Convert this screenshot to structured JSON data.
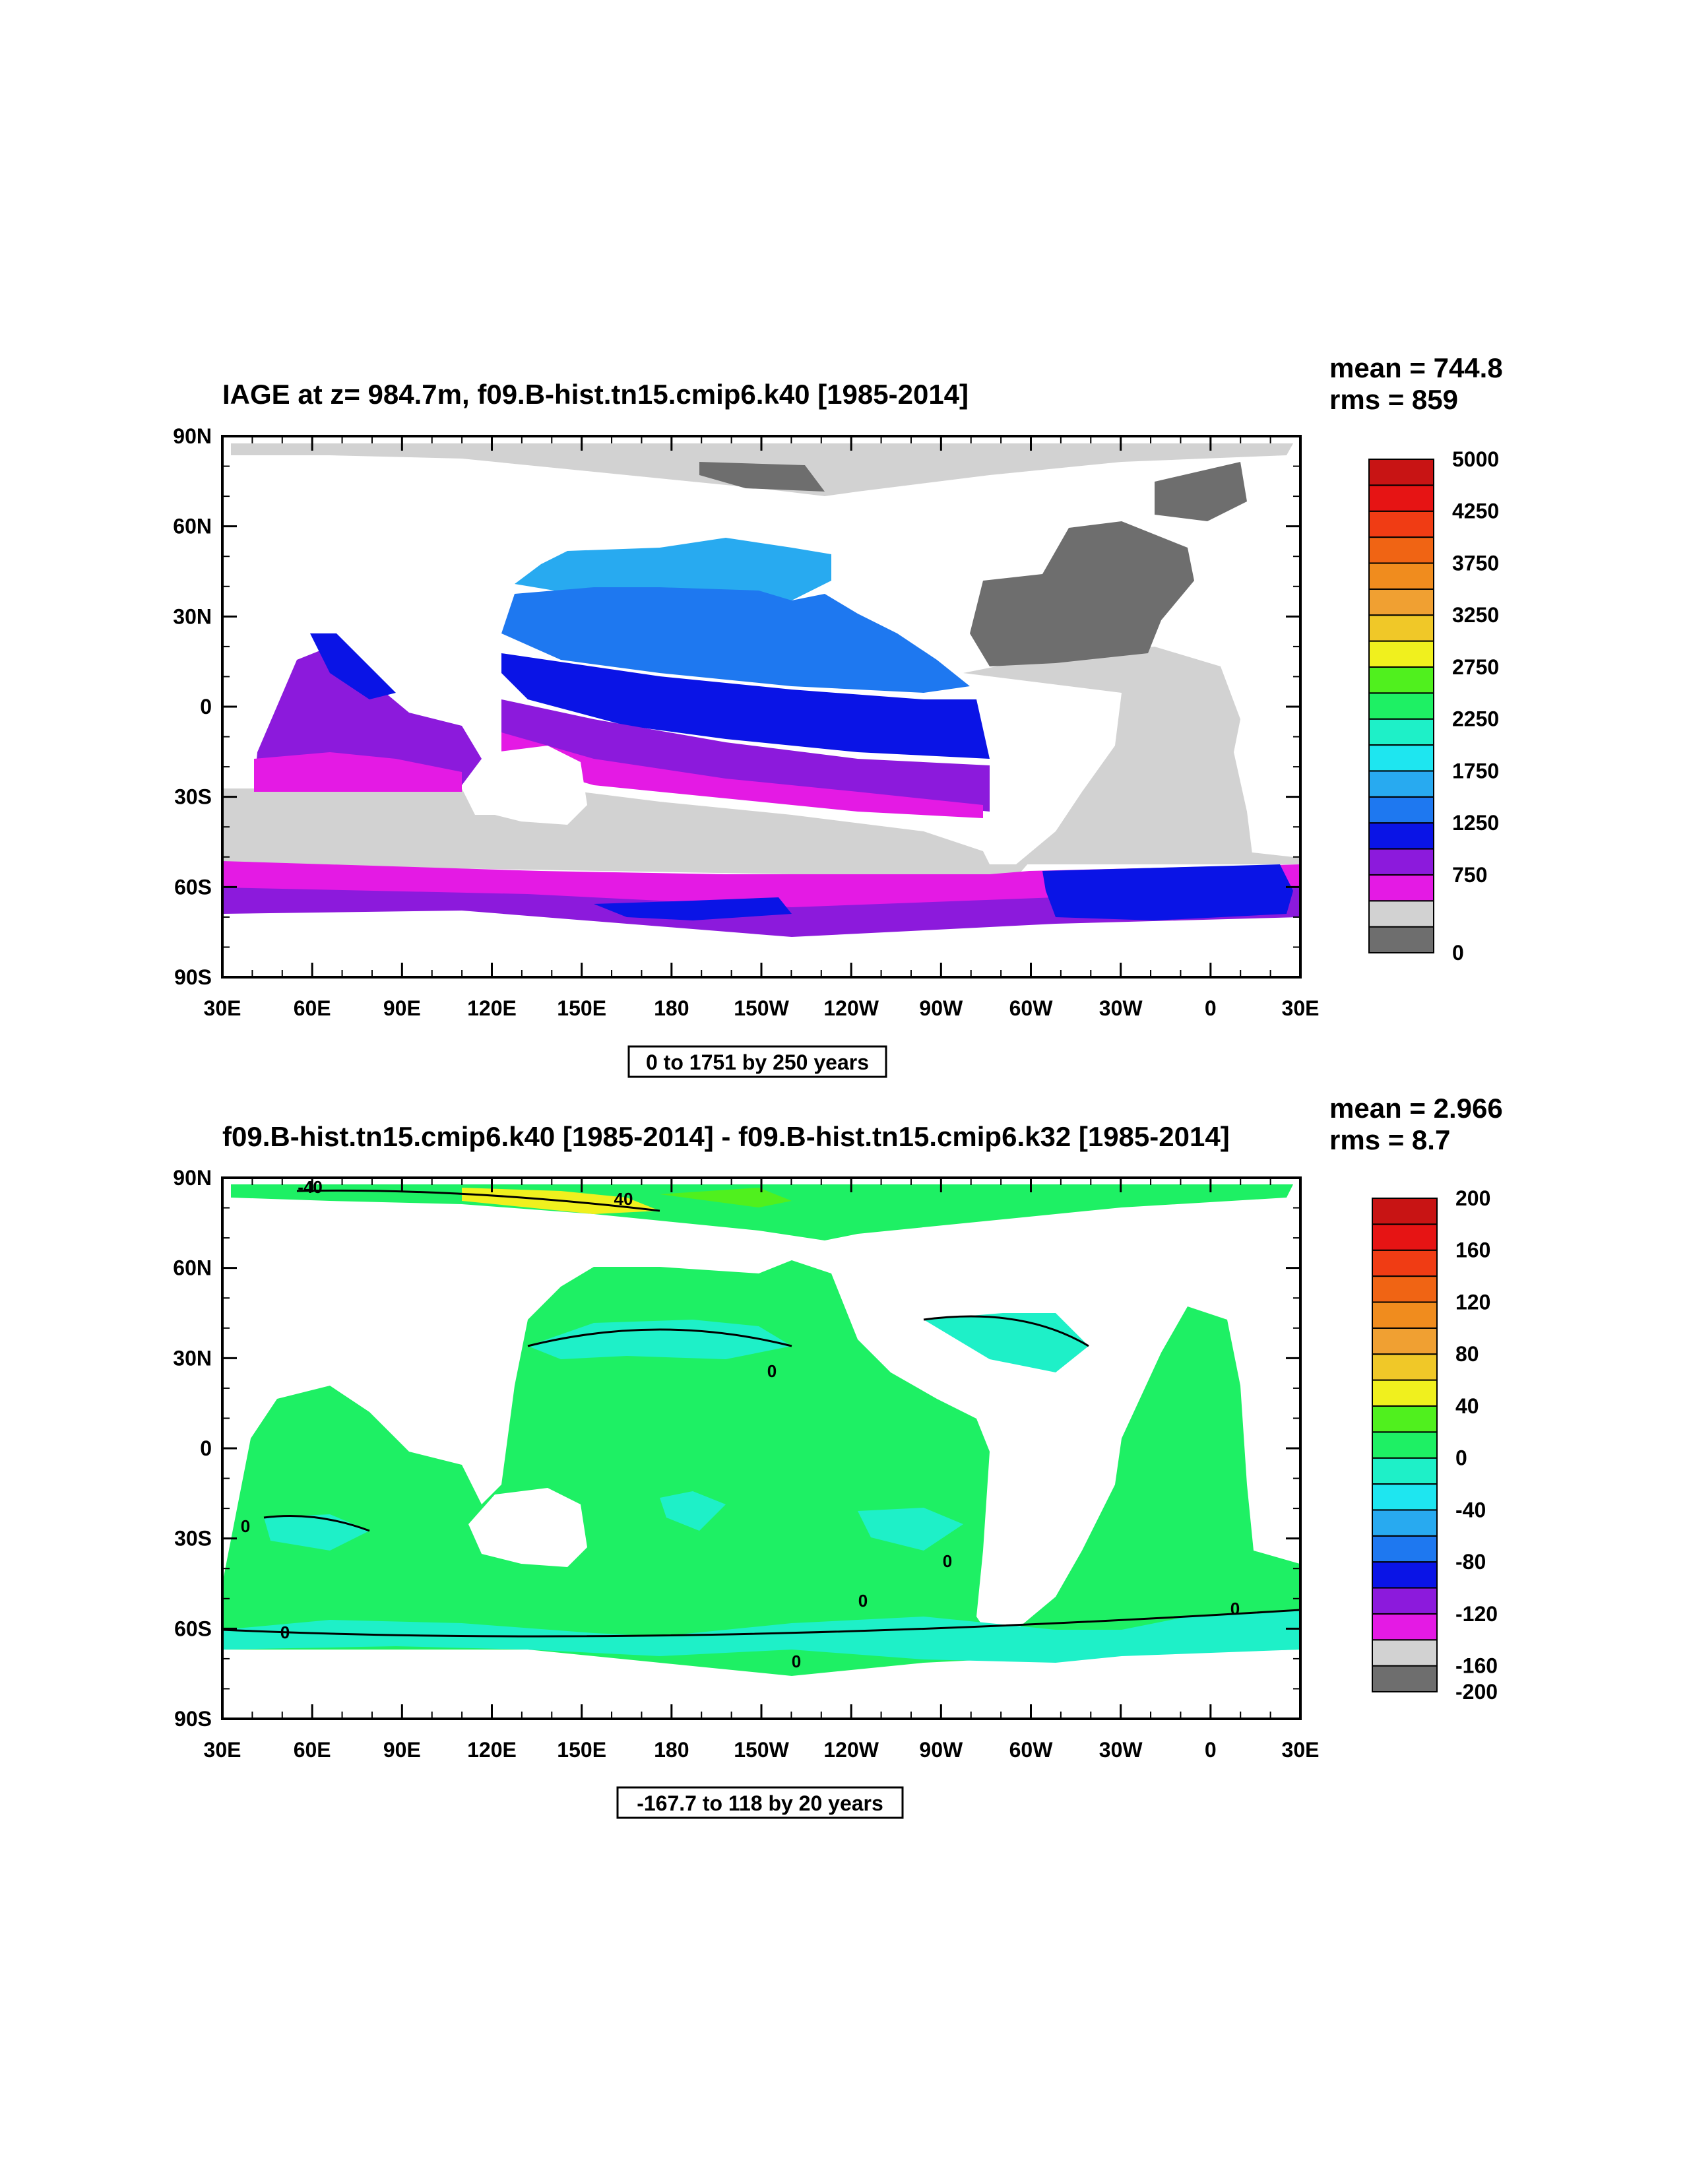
{
  "chart_data": [
    {
      "type": "heatmap",
      "title": "IAGE at z= 984.7m, f09.B-hist.tn15.cmip6.k40 [1985-2014]",
      "stats": {
        "mean": "mean = 744.8",
        "rms": "rms = 859"
      },
      "contour_info": "0 to 1751 by 250 years",
      "xlim": [
        30,
        390
      ],
      "ylim": [
        -90,
        90
      ],
      "x_ticks": [
        {
          "value": 30,
          "label": "30E"
        },
        {
          "value": 60,
          "label": "60E"
        },
        {
          "value": 90,
          "label": "90E"
        },
        {
          "value": 120,
          "label": "120E"
        },
        {
          "value": 150,
          "label": "150E"
        },
        {
          "value": 180,
          "label": "180"
        },
        {
          "value": 210,
          "label": "150W"
        },
        {
          "value": 240,
          "label": "120W"
        },
        {
          "value": 270,
          "label": "90W"
        },
        {
          "value": 300,
          "label": "60W"
        },
        {
          "value": 330,
          "label": "30W"
        },
        {
          "value": 360,
          "label": "0"
        },
        {
          "value": 390,
          "label": "30E"
        }
      ],
      "y_ticks": [
        {
          "value": 90,
          "label": "90N"
        },
        {
          "value": 60,
          "label": "60N"
        },
        {
          "value": 30,
          "label": "30N"
        },
        {
          "value": 0,
          "label": "0"
        },
        {
          "value": -30,
          "label": "30S"
        },
        {
          "value": -60,
          "label": "60S"
        },
        {
          "value": -90,
          "label": "90S"
        }
      ],
      "colorbar": {
        "colors": [
          "#6e6e6e",
          "#d2d2d2",
          "#e41ae4",
          "#8c1adc",
          "#0a14e6",
          "#1e78f0",
          "#28aaf0",
          "#1ee6f0",
          "#1ef0c8",
          "#1ef064",
          "#50f01e",
          "#f0f01e",
          "#f0c828",
          "#f0a032",
          "#f08c1e",
          "#f06414",
          "#f03c14",
          "#e61414",
          "#c81414"
        ],
        "labels": [
          {
            "index": 0,
            "text": "0"
          },
          {
            "index": 3,
            "text": "750"
          },
          {
            "index": 5,
            "text": "1250"
          },
          {
            "index": 7,
            "text": "1750"
          },
          {
            "index": 9,
            "text": "2250"
          },
          {
            "index": 11,
            "text": "2750"
          },
          {
            "index": 13,
            "text": "3250"
          },
          {
            "index": 15,
            "text": "3750"
          },
          {
            "index": 17,
            "text": "4250"
          },
          {
            "index": 19,
            "text": "5000"
          }
        ]
      }
    },
    {
      "type": "heatmap",
      "title": "f09.B-hist.tn15.cmip6.k40 [1985-2014] - f09.B-hist.tn15.cmip6.k32 [1985-2014]",
      "stats": {
        "mean": "mean = 2.966",
        "rms": "rms = 8.7"
      },
      "contour_info": "-167.7 to 118 by 20 years",
      "xlim": [
        30,
        390
      ],
      "ylim": [
        -90,
        90
      ],
      "contour_labels": [
        "-40",
        "40",
        "0",
        "0",
        "0",
        "0",
        "0",
        "0",
        "0"
      ],
      "colorbar": {
        "colors": [
          "#6e6e6e",
          "#d2d2d2",
          "#e41ae4",
          "#8c1adc",
          "#0a14e6",
          "#1e78f0",
          "#28aaf0",
          "#1ee6f0",
          "#1ef0c8",
          "#1ef064",
          "#50f01e",
          "#f0f01e",
          "#f0c828",
          "#f0a032",
          "#f08c1e",
          "#f06414",
          "#f03c14",
          "#e61414",
          "#c81414"
        ],
        "labels": [
          {
            "index": 0,
            "text": "-200"
          },
          {
            "index": 1,
            "text": "-160"
          },
          {
            "index": 3,
            "text": "-120"
          },
          {
            "index": 5,
            "text": "-80"
          },
          {
            "index": 7,
            "text": "-40"
          },
          {
            "index": 9,
            "text": "0"
          },
          {
            "index": 11,
            "text": "40"
          },
          {
            "index": 13,
            "text": "80"
          },
          {
            "index": 15,
            "text": "120"
          },
          {
            "index": 17,
            "text": "160"
          },
          {
            "index": 19,
            "text": "200"
          }
        ]
      }
    }
  ]
}
